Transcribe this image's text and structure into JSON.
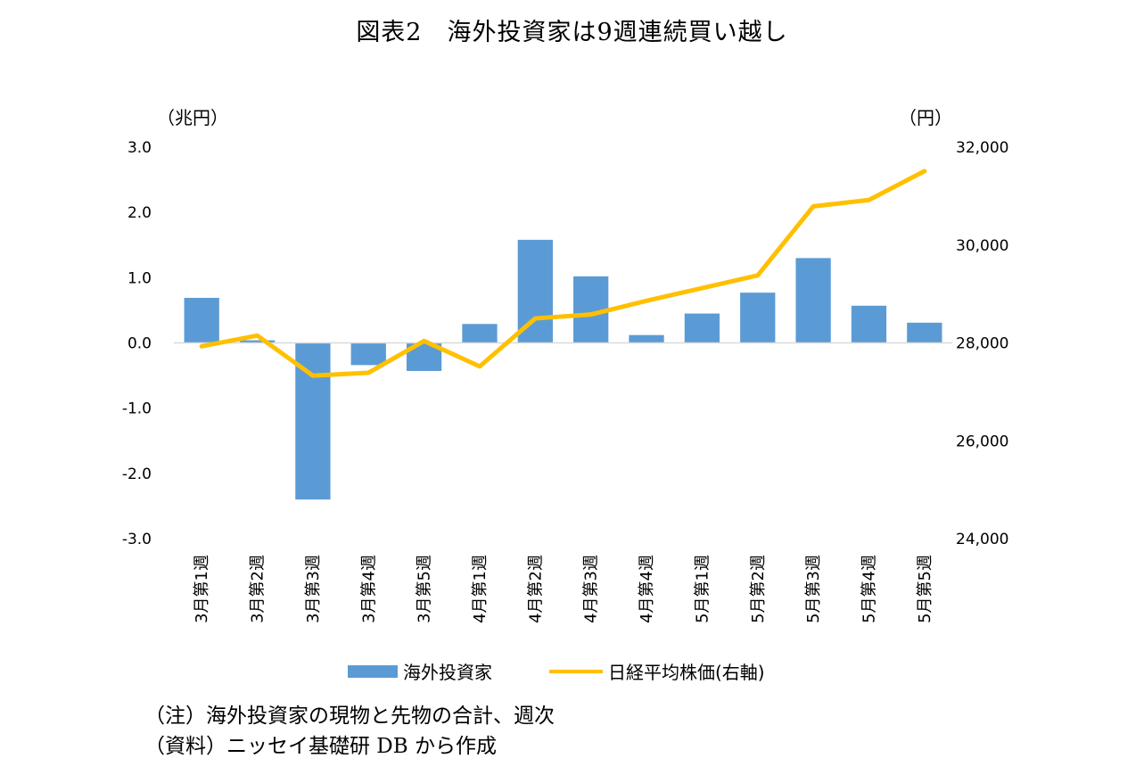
{
  "chart_data": {
    "type": "bar+line",
    "title": "図表2　海外投資家は9週連続買い越し",
    "left_axis_unit": "（兆円）",
    "right_axis_unit": "（円）",
    "categories": [
      "3月第1週",
      "3月第2週",
      "3月第3週",
      "3月第4週",
      "3月第5週",
      "4月第1週",
      "4月第2週",
      "4月第3週",
      "4月第4週",
      "5月第1週",
      "5月第2週",
      "5月第3週",
      "5月第4週",
      "5月第5週"
    ],
    "series": [
      {
        "name": "海外投資家",
        "type": "bar",
        "axis": "left",
        "color": "#5b9bd5",
        "values": [
          0.69,
          0.04,
          -2.4,
          -0.34,
          -0.43,
          0.29,
          1.58,
          1.02,
          0.12,
          0.45,
          0.77,
          1.3,
          0.57,
          0.31
        ]
      },
      {
        "name": "日経平均株価(右軸)",
        "type": "line",
        "axis": "right",
        "color": "#ffc000",
        "values": [
          27930,
          28150,
          27330,
          27390,
          28040,
          27520,
          28500,
          28580,
          28860,
          29120,
          29380,
          30790,
          30920,
          31510
        ]
      }
    ],
    "left_axis": {
      "min": -3.0,
      "max": 3.0,
      "ticks": [
        "3.0",
        "2.0",
        "1.0",
        "0.0",
        "-1.0",
        "-2.0",
        "-3.0"
      ]
    },
    "right_axis": {
      "min": 24000,
      "max": 32000,
      "ticks": [
        "32,000",
        "30,000",
        "28,000",
        "26,000",
        "24,000"
      ]
    },
    "grid": false,
    "legend_position": "bottom"
  },
  "notes": {
    "note": "（注）海外投資家の現物と先物の合計、週次",
    "source": "（資料）ニッセイ基礎研 DB から作成"
  }
}
